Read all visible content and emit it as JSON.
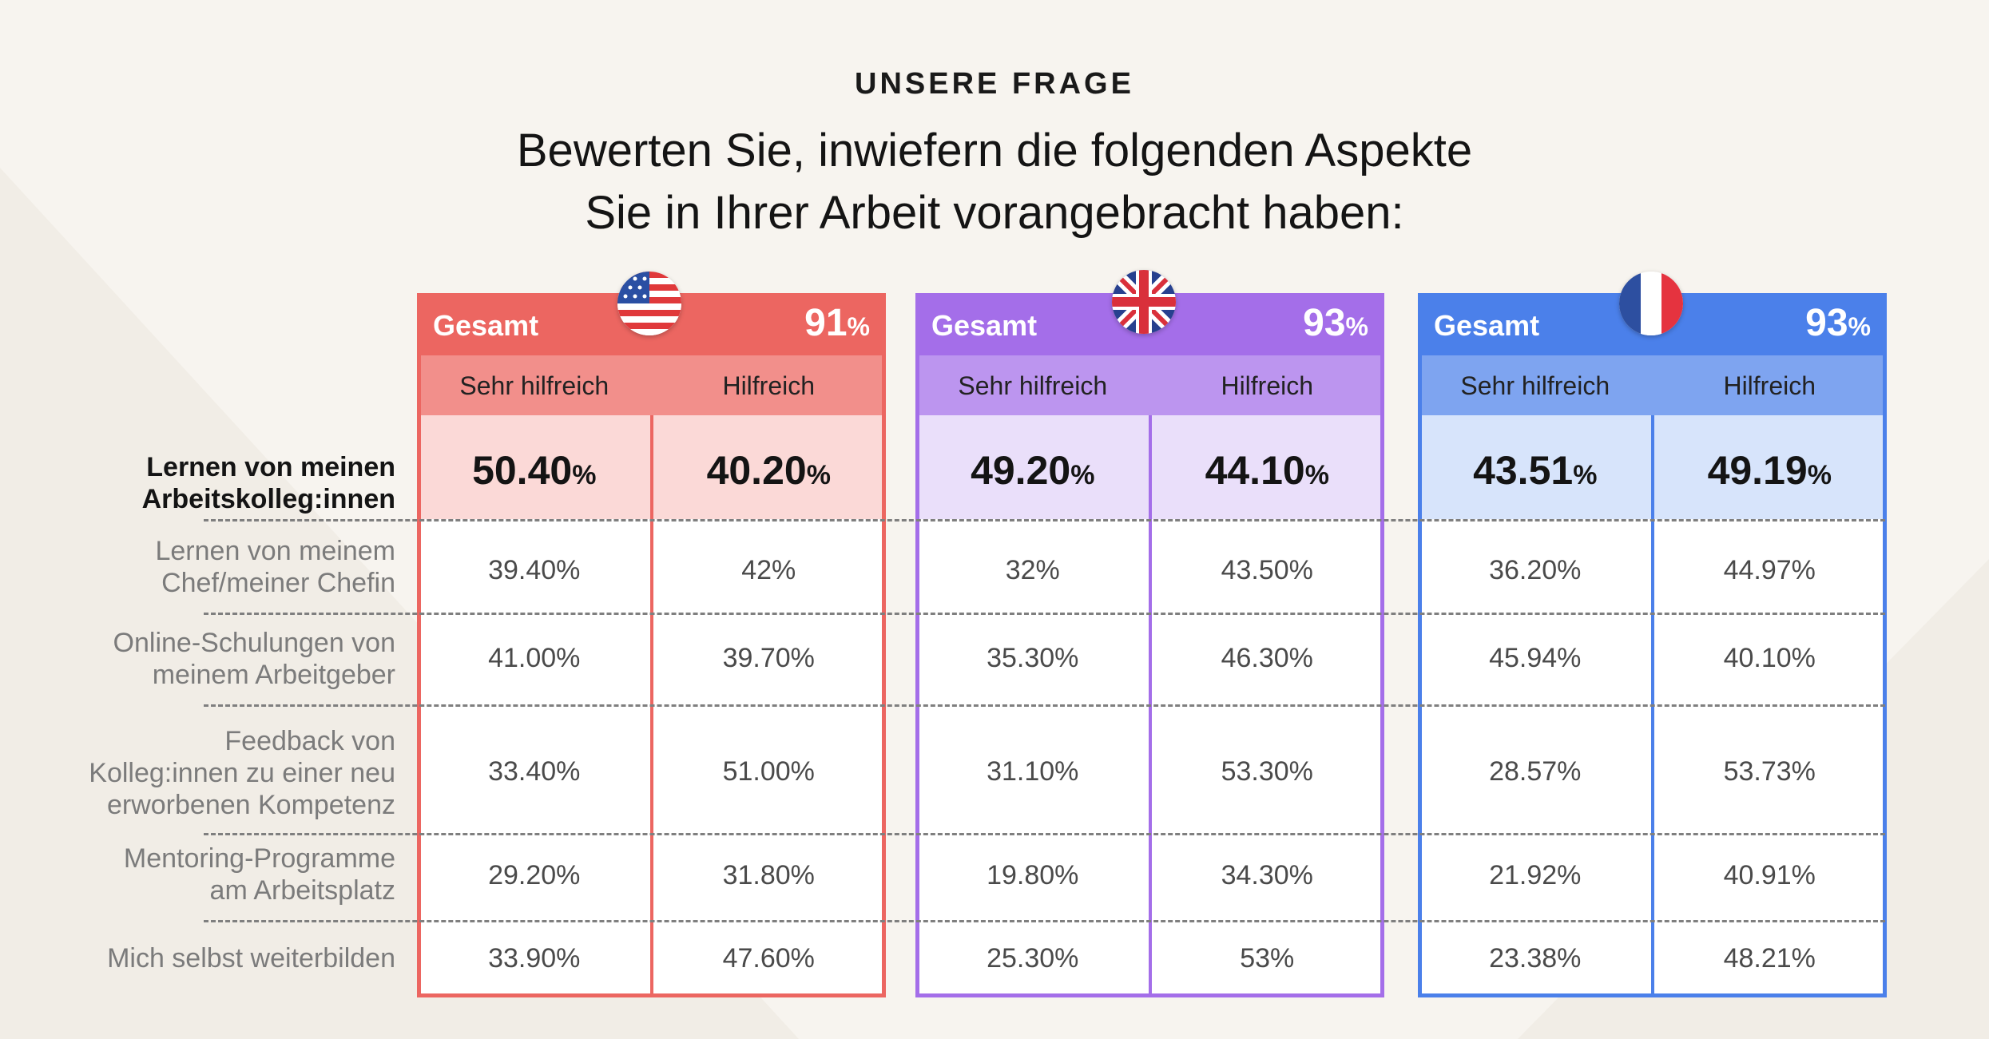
{
  "header": {
    "kicker": "UNSERE FRAGE",
    "title_line1": "Bewerten Sie, inwiefern die folgenden Aspekte",
    "title_line2": "Sie in Ihrer Arbeit vorangebracht haben:"
  },
  "chart_data": {
    "type": "table",
    "title": "Bewerten Sie, inwiefern die folgenden Aspekte Sie in Ihrer Arbeit vorangebracht haben:",
    "total_label": "Gesamt",
    "columns": [
      "Sehr hilfreich",
      "Hilfreich"
    ],
    "rows": [
      {
        "line1": "Lernen von meinen",
        "line2": "Arbeitskolleg:innen",
        "line3": ""
      },
      {
        "line1": "Lernen von meinem",
        "line2": "Chef/meiner Chefin",
        "line3": ""
      },
      {
        "line1": "Online-Schulungen von",
        "line2": "meinem Arbeitgeber",
        "line3": ""
      },
      {
        "line1": "Feedback von",
        "line2": "Kolleg:innen zu einer neu",
        "line3": "erworbenen Kompetenz"
      },
      {
        "line1": "Mentoring-Programme",
        "line2": "am Arbeitsplatz",
        "line3": ""
      },
      {
        "line1": "Mich selbst weiterbilden",
        "line2": "",
        "line3": ""
      }
    ],
    "countries": [
      {
        "name": "USA",
        "flag": "us-flag-icon",
        "total": "91",
        "color": "#ec6661",
        "sub_color": "#f28f8b",
        "highlight_color": "#fbd9d7",
        "top": {
          "sehr": "50.40",
          "hilf": "40.20"
        },
        "values": [
          [
            "39.40%",
            "42%"
          ],
          [
            "41.00%",
            "39.70%"
          ],
          [
            "33.40%",
            "51.00%"
          ],
          [
            "29.20%",
            "31.80%"
          ],
          [
            "33.90%",
            "47.60%"
          ]
        ]
      },
      {
        "name": "UK",
        "flag": "uk-flag-icon",
        "total": "93",
        "color": "#a46ee9",
        "sub_color": "#bc95ef",
        "highlight_color": "#eadffa",
        "top": {
          "sehr": "49.20",
          "hilf": "44.10"
        },
        "values": [
          [
            "32%",
            "43.50%"
          ],
          [
            "35.30%",
            "46.30%"
          ],
          [
            "31.10%",
            "53.30%"
          ],
          [
            "19.80%",
            "34.30%"
          ],
          [
            "25.30%",
            "53%"
          ]
        ]
      },
      {
        "name": "Frankreich",
        "flag": "fr-flag-icon",
        "total": "93",
        "color": "#4b80ea",
        "sub_color": "#7ea4f0",
        "highlight_color": "#d7e4fb",
        "top": {
          "sehr": "43.51",
          "hilf": "49.19"
        },
        "values": [
          [
            "36.20%",
            "44.97%"
          ],
          [
            "45.94%",
            "40.10%"
          ],
          [
            "28.57%",
            "53.73%"
          ],
          [
            "21.92%",
            "40.91%"
          ],
          [
            "23.38%",
            "48.21%"
          ]
        ]
      }
    ],
    "pct_suffix": "%"
  }
}
